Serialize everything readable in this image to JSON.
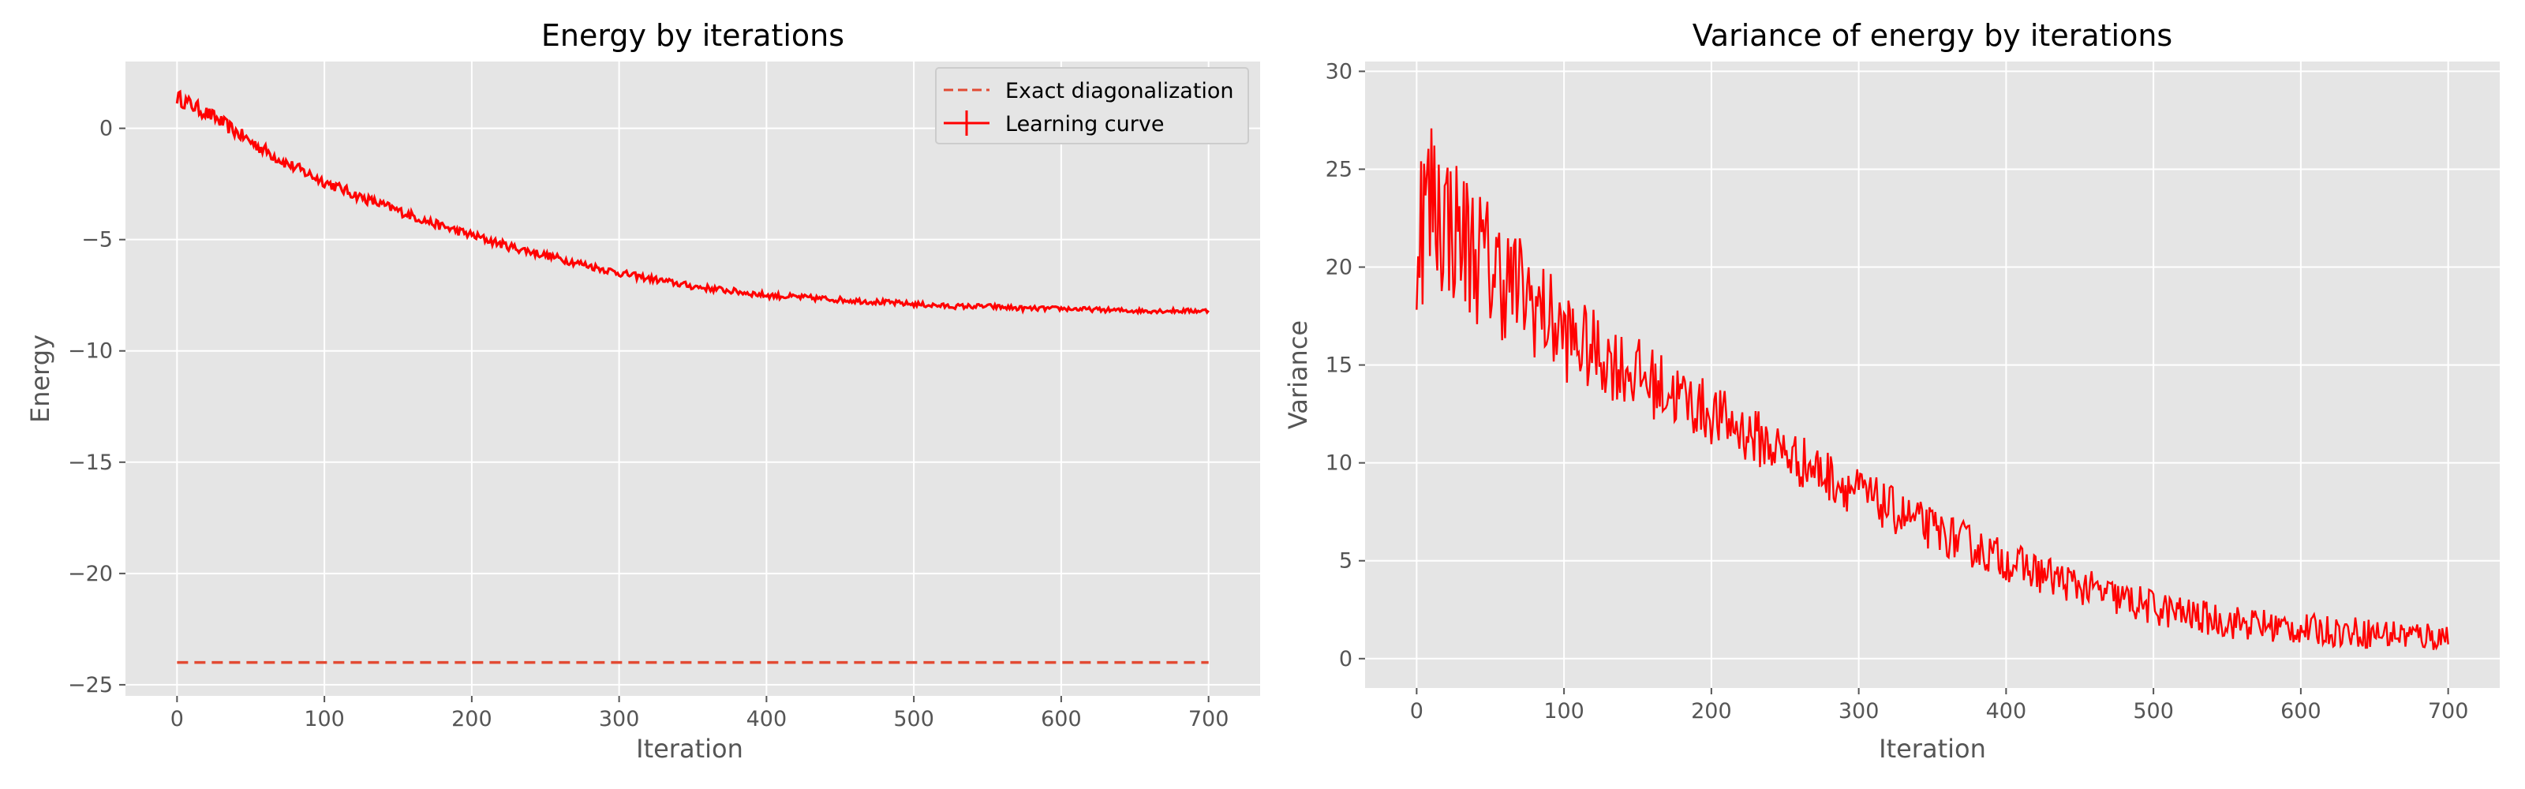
{
  "chart_data": [
    {
      "type": "line",
      "title": "Energy by iterations",
      "xlabel": "Iteration",
      "ylabel": "Energy",
      "xlim": [
        -35,
        735
      ],
      "ylim": [
        -25.5,
        3.0
      ],
      "xticks": [
        0,
        100,
        200,
        300,
        400,
        500,
        600,
        700
      ],
      "xtick_labels": [
        "0",
        "100",
        "200",
        "300",
        "400",
        "500",
        "600",
        "700"
      ],
      "yticks": [
        0,
        -5,
        -10,
        -15,
        -20,
        -25
      ],
      "ytick_labels": [
        "0",
        "−5",
        "−10",
        "−15",
        "−20",
        "−25"
      ],
      "grid": true,
      "legend": "top-right",
      "series": [
        {
          "name": "Exact diagonalization",
          "style": "dashed",
          "color": "#e24a33",
          "x": [
            0,
            700
          ],
          "y": [
            -24.0,
            -24.0
          ]
        },
        {
          "name": "Learning curve",
          "style": "solid-errorbar",
          "color": "#ff0000",
          "x": [
            0,
            25,
            50,
            75,
            100,
            125,
            150,
            175,
            200,
            225,
            250,
            275,
            300,
            325,
            350,
            375,
            400,
            425,
            450,
            475,
            500,
            525,
            550,
            575,
            600,
            625,
            650,
            675,
            700
          ],
          "y": [
            1.4,
            0.5,
            -0.6,
            -1.6,
            -2.4,
            -3.1,
            -3.7,
            -4.3,
            -4.8,
            -5.3,
            -5.7,
            -6.1,
            -6.5,
            -6.8,
            -7.1,
            -7.3,
            -7.5,
            -7.6,
            -7.7,
            -7.8,
            -7.9,
            -8.0,
            -8.0,
            -8.1,
            -8.1,
            -8.15,
            -8.2,
            -8.2,
            -8.2
          ],
          "noise": [
            0.35,
            0.32,
            0.3,
            0.27,
            0.25,
            0.23,
            0.22,
            0.2,
            0.2,
            0.19,
            0.18,
            0.17,
            0.16,
            0.15,
            0.15,
            0.14,
            0.14,
            0.13,
            0.13,
            0.12,
            0.12,
            0.11,
            0.11,
            0.11,
            0.1,
            0.1,
            0.1,
            0.1,
            0.1
          ]
        }
      ]
    },
    {
      "type": "line",
      "title": "Variance of energy by iterations",
      "xlabel": "Iteration",
      "ylabel": "Variance",
      "xlim": [
        -35,
        735
      ],
      "ylim": [
        -1.5,
        30.5
      ],
      "xticks": [
        0,
        100,
        200,
        300,
        400,
        500,
        600,
        700
      ],
      "xtick_labels": [
        "0",
        "100",
        "200",
        "300",
        "400",
        "500",
        "600",
        "700"
      ],
      "yticks": [
        0,
        5,
        10,
        15,
        20,
        25,
        30
      ],
      "ytick_labels": [
        "0",
        "5",
        "10",
        "15",
        "20",
        "25",
        "30"
      ],
      "grid": true,
      "series": [
        {
          "color": "#ff0000",
          "x": [
            0,
            10,
            25,
            50,
            75,
            100,
            125,
            150,
            175,
            200,
            225,
            250,
            275,
            300,
            325,
            350,
            375,
            400,
            425,
            450,
            475,
            500,
            525,
            550,
            575,
            600,
            625,
            650,
            675,
            700
          ],
          "y": [
            22.0,
            23.5,
            22.0,
            20.0,
            18.5,
            16.5,
            15.5,
            14.5,
            13.5,
            12.5,
            11.5,
            10.5,
            9.5,
            8.5,
            7.5,
            6.6,
            5.8,
            5.0,
            4.3,
            3.7,
            3.1,
            2.6,
            2.2,
            1.9,
            1.7,
            1.5,
            1.4,
            1.3,
            1.2,
            1.1
          ],
          "noise": [
            2.8,
            3.0,
            2.5,
            2.2,
            1.8,
            1.5,
            1.3,
            1.2,
            1.1,
            1.0,
            0.95,
            0.9,
            0.85,
            0.8,
            0.75,
            0.7,
            0.7,
            0.65,
            0.65,
            0.6,
            0.6,
            0.6,
            0.55,
            0.55,
            0.55,
            0.5,
            0.5,
            0.5,
            0.5,
            0.5
          ]
        }
      ]
    }
  ]
}
